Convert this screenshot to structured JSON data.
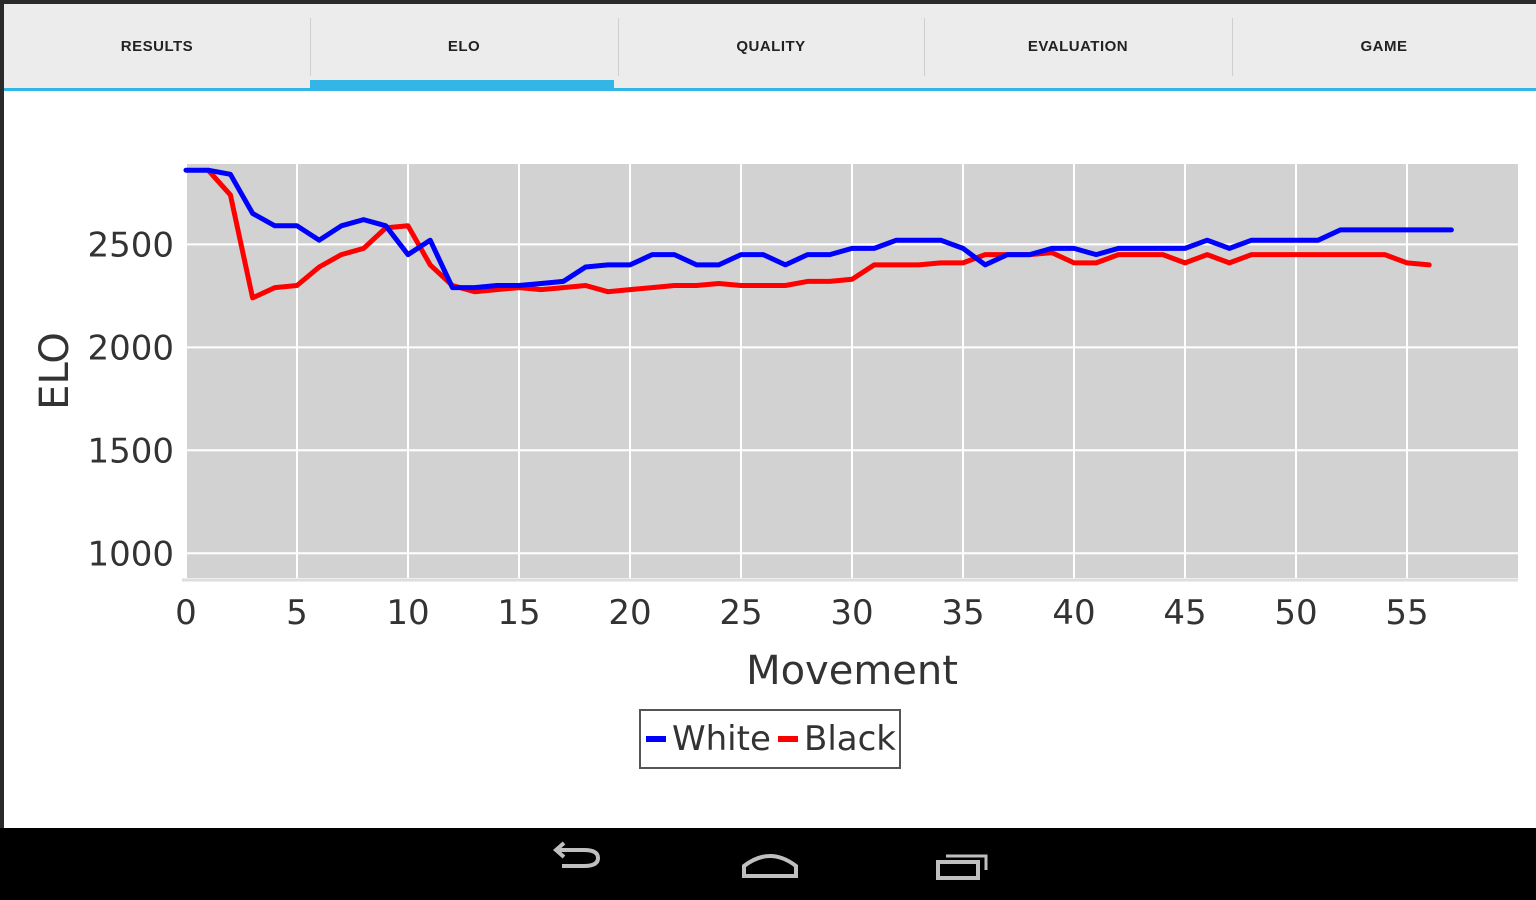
{
  "tabs": [
    {
      "label": "RESULTS"
    },
    {
      "label": "ELO"
    },
    {
      "label": "QUALITY"
    },
    {
      "label": "EVALUATION"
    },
    {
      "label": "GAME"
    }
  ],
  "selected_tab": "ELO",
  "colors": {
    "accent": "#33b5e5",
    "plot_bg": "#d2d2d2",
    "white_series": "#0000ff",
    "black_series": "#ff0000"
  },
  "nav_icons": [
    "back-icon",
    "home-icon",
    "recent-apps-icon"
  ],
  "chart_data": {
    "type": "line",
    "xlabel": "Movement",
    "ylabel": "ELO",
    "xlim": [
      0,
      60
    ],
    "ylim": [
      880,
      2890
    ],
    "x_ticks": [
      0,
      5,
      10,
      15,
      20,
      25,
      30,
      35,
      40,
      45,
      50,
      55
    ],
    "y_ticks": [
      1000,
      1500,
      2000,
      2500
    ],
    "grid": true,
    "legend_position": "bottom-center",
    "series": [
      {
        "name": "White",
        "color": "#0000ff",
        "points": [
          [
            0,
            2860
          ],
          [
            1,
            2860
          ],
          [
            2,
            2840
          ],
          [
            3,
            2650
          ],
          [
            4,
            2590
          ],
          [
            5,
            2590
          ],
          [
            6,
            2520
          ],
          [
            7,
            2590
          ],
          [
            8,
            2620
          ],
          [
            9,
            2590
          ],
          [
            10,
            2450
          ],
          [
            11,
            2520
          ],
          [
            12,
            2290
          ],
          [
            13,
            2290
          ],
          [
            14,
            2300
          ],
          [
            15,
            2300
          ],
          [
            16,
            2310
          ],
          [
            17,
            2320
          ],
          [
            18,
            2390
          ],
          [
            19,
            2400
          ],
          [
            20,
            2400
          ],
          [
            21,
            2450
          ],
          [
            22,
            2450
          ],
          [
            23,
            2400
          ],
          [
            24,
            2400
          ],
          [
            25,
            2450
          ],
          [
            26,
            2450
          ],
          [
            27,
            2400
          ],
          [
            28,
            2450
          ],
          [
            29,
            2450
          ],
          [
            30,
            2480
          ],
          [
            31,
            2480
          ],
          [
            32,
            2520
          ],
          [
            33,
            2520
          ],
          [
            34,
            2520
          ],
          [
            35,
            2480
          ],
          [
            36,
            2400
          ],
          [
            37,
            2450
          ],
          [
            38,
            2450
          ],
          [
            39,
            2480
          ],
          [
            40,
            2480
          ],
          [
            41,
            2450
          ],
          [
            42,
            2480
          ],
          [
            43,
            2480
          ],
          [
            44,
            2480
          ],
          [
            45,
            2480
          ],
          [
            46,
            2520
          ],
          [
            47,
            2480
          ],
          [
            48,
            2520
          ],
          [
            49,
            2520
          ],
          [
            50,
            2520
          ],
          [
            51,
            2520
          ],
          [
            52,
            2570
          ],
          [
            53,
            2570
          ],
          [
            54,
            2570
          ],
          [
            55,
            2570
          ],
          [
            56,
            2570
          ],
          [
            57,
            2570
          ]
        ]
      },
      {
        "name": "Black",
        "color": "#ff0000",
        "points": [
          [
            1,
            2860
          ],
          [
            2,
            2740
          ],
          [
            3,
            2240
          ],
          [
            4,
            2290
          ],
          [
            5,
            2300
          ],
          [
            6,
            2390
          ],
          [
            7,
            2450
          ],
          [
            8,
            2480
          ],
          [
            9,
            2580
          ],
          [
            10,
            2590
          ],
          [
            11,
            2400
          ],
          [
            12,
            2300
          ],
          [
            13,
            2270
          ],
          [
            14,
            2280
          ],
          [
            15,
            2290
          ],
          [
            16,
            2280
          ],
          [
            17,
            2290
          ],
          [
            18,
            2300
          ],
          [
            19,
            2270
          ],
          [
            20,
            2280
          ],
          [
            21,
            2290
          ],
          [
            22,
            2300
          ],
          [
            23,
            2300
          ],
          [
            24,
            2310
          ],
          [
            25,
            2300
          ],
          [
            26,
            2300
          ],
          [
            27,
            2300
          ],
          [
            28,
            2320
          ],
          [
            29,
            2320
          ],
          [
            30,
            2330
          ],
          [
            31,
            2400
          ],
          [
            32,
            2400
          ],
          [
            33,
            2400
          ],
          [
            34,
            2410
          ],
          [
            35,
            2410
          ],
          [
            36,
            2450
          ],
          [
            37,
            2450
          ],
          [
            38,
            2450
          ],
          [
            39,
            2460
          ],
          [
            40,
            2410
          ],
          [
            41,
            2410
          ],
          [
            42,
            2450
          ],
          [
            43,
            2450
          ],
          [
            44,
            2450
          ],
          [
            45,
            2410
          ],
          [
            46,
            2450
          ],
          [
            47,
            2410
          ],
          [
            48,
            2450
          ],
          [
            49,
            2450
          ],
          [
            50,
            2450
          ],
          [
            51,
            2450
          ],
          [
            52,
            2450
          ],
          [
            53,
            2450
          ],
          [
            54,
            2450
          ],
          [
            55,
            2410
          ],
          [
            56,
            2400
          ]
        ]
      }
    ]
  }
}
